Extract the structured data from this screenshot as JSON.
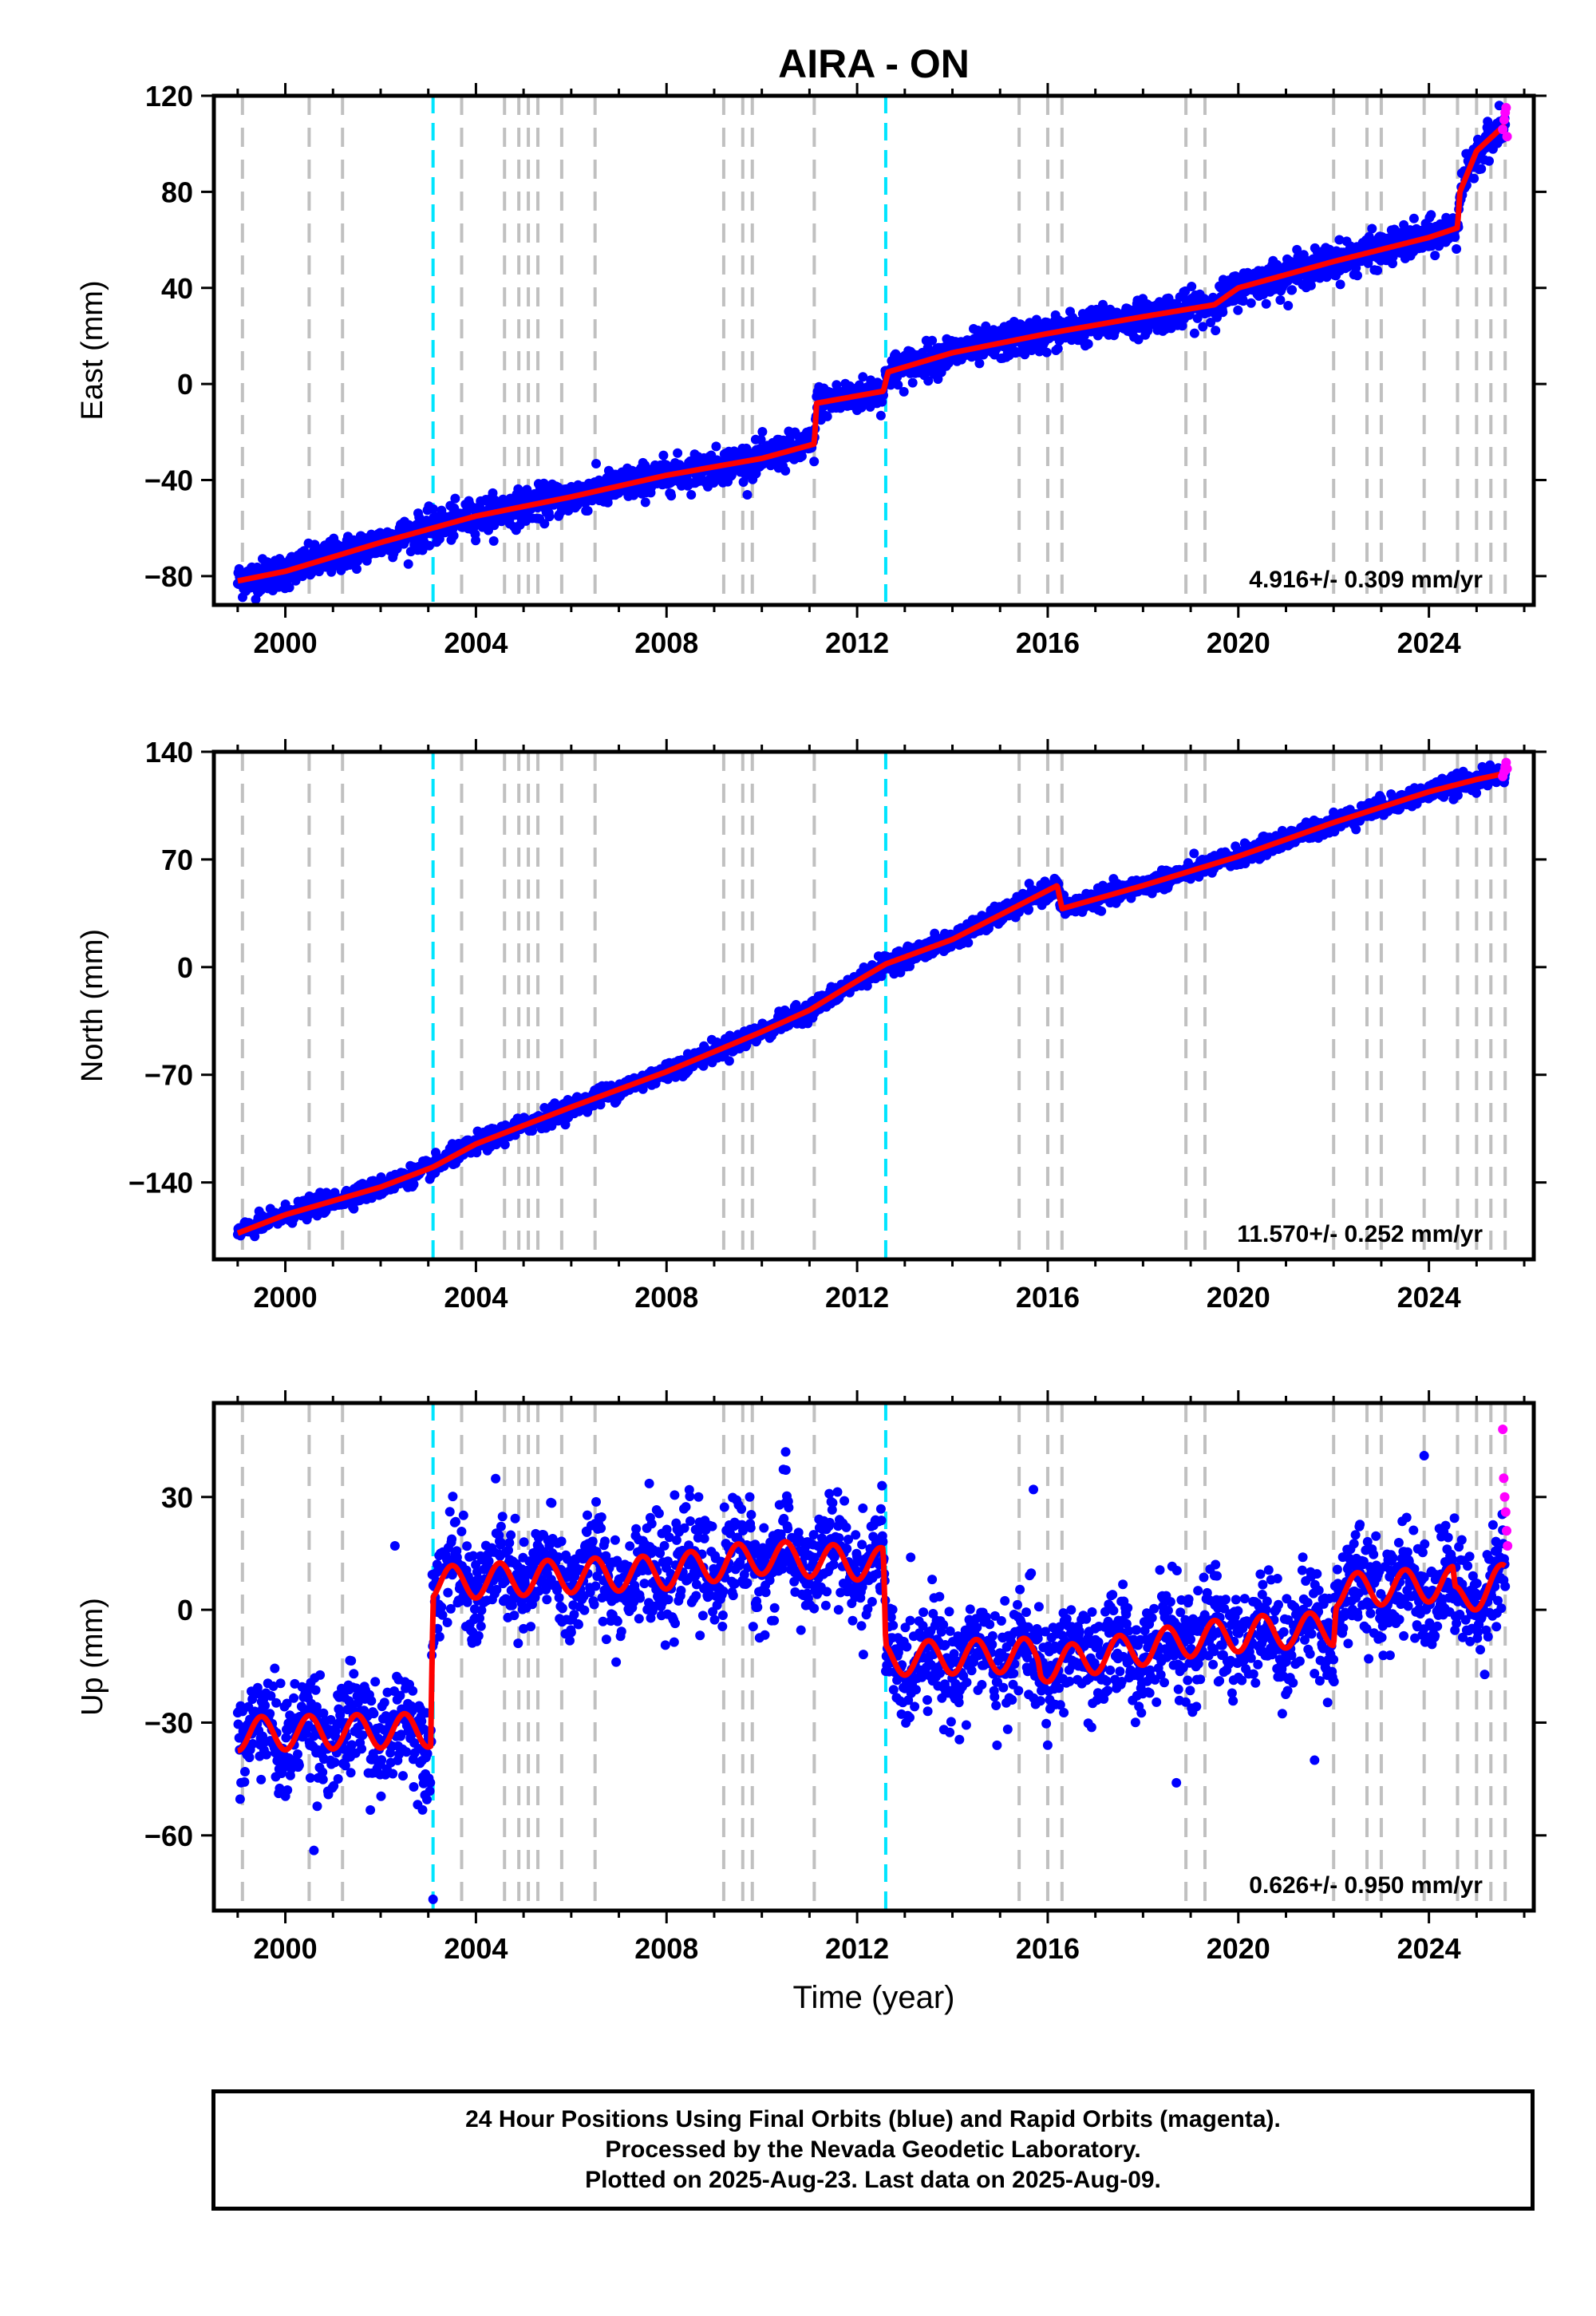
{
  "title": "AIRA - ON",
  "colors": {
    "final_orbits": "#0000ff",
    "rapid_orbits": "#ff00ff",
    "model": "#ff0000",
    "equipment_change": "#c0c0c0",
    "earthquake": "#00e5ff"
  },
  "x_axis": {
    "label": "Time (year)",
    "range": [
      1998.5,
      2026.2
    ],
    "ticks": [
      2000,
      2004,
      2008,
      2012,
      2016,
      2020,
      2024
    ],
    "tick_labels": [
      "2000",
      "2004",
      "2008",
      "2012",
      "2016",
      "2020",
      "2024"
    ]
  },
  "event_lines": {
    "gray_dashed": [
      1999.1,
      2000.5,
      2001.2,
      2003.7,
      2004.6,
      2004.9,
      2005.1,
      2005.3,
      2005.8,
      2006.5,
      2009.2,
      2009.6,
      2009.8,
      2011.1,
      2015.4,
      2016.0,
      2016.3,
      2018.9,
      2019.3,
      2022.0,
      2022.7,
      2023.0,
      2023.9,
      2024.6,
      2025.0,
      2025.3,
      2025.6
    ],
    "cyan_dashed": [
      2003.1,
      2012.6
    ]
  },
  "chart_data": [
    {
      "type": "scatter",
      "component": "east",
      "ylabel": "East (mm)",
      "ylim": [
        -92,
        120
      ],
      "yticks": [
        -80,
        -40,
        0,
        40,
        80,
        120
      ],
      "ytick_labels": [
        "−80",
        "−40",
        "0",
        "40",
        "80",
        "120"
      ],
      "rate_text": "4.916+/- 0.309 mm/yr",
      "rate_mm_per_yr": 4.916,
      "rate_sigma": 0.309,
      "model_series": {
        "x": [
          1999.0,
          2000.0,
          2002.0,
          2004.0,
          2006.0,
          2008.0,
          2010.0,
          2011.1,
          2011.15,
          2012.55,
          2012.65,
          2014.0,
          2016.0,
          2018.0,
          2019.5,
          2020.0,
          2022.0,
          2024.0,
          2024.6,
          2024.65,
          2025.0,
          2025.6
        ],
        "y": [
          -82,
          -78,
          -66,
          -55,
          -47,
          -38,
          -31,
          -25,
          -8,
          -3,
          5,
          13,
          21,
          28,
          33,
          40,
          51,
          61,
          65,
          80,
          97,
          108
        ]
      },
      "observations": {
        "x": [
          1999.0,
          2000.0,
          2002.0,
          2004.0,
          2006.0,
          2008.0,
          2010.0,
          2011.1,
          2011.15,
          2012.55,
          2012.65,
          2014.0,
          2016.0,
          2018.0,
          2019.5,
          2020.0,
          2022.0,
          2024.0,
          2024.6,
          2024.65,
          2025.0,
          2025.6
        ],
        "y": [
          -82,
          -78,
          -66,
          -55,
          -47,
          -38,
          -31,
          -25,
          -8,
          -3,
          5,
          13,
          21,
          28,
          33,
          40,
          51,
          61,
          65,
          80,
          97,
          108
        ],
        "spread": 3.5
      },
      "rapid_points": {
        "x": [
          2025.55,
          2025.58,
          2025.6,
          2025.62,
          2025.64
        ],
        "y": [
          106,
          110,
          113,
          115,
          103
        ]
      }
    },
    {
      "type": "scatter",
      "component": "north",
      "ylabel": "North (mm)",
      "ylim": [
        -190,
        140
      ],
      "yticks": [
        -140,
        -70,
        0,
        70,
        140
      ],
      "ytick_labels": [
        "−140",
        "−70",
        "0",
        "70",
        "140"
      ],
      "rate_text": "11.570+/- 0.252 mm/yr",
      "rate_mm_per_yr": 11.57,
      "rate_sigma": 0.252,
      "model_series": {
        "x": [
          1999.0,
          2000.0,
          2002.0,
          2003.1,
          2004.0,
          2006.0,
          2008.0,
          2010.0,
          2011.0,
          2012.0,
          2012.6,
          2014.0,
          2016.2,
          2016.3,
          2018.0,
          2020.0,
          2022.0,
          2024.0,
          2025.0,
          2025.6
        ],
        "y": [
          -173,
          -161,
          -143,
          -130,
          -115,
          -91,
          -68,
          -42,
          -28,
          -9,
          2,
          18,
          53,
          38,
          53,
          72,
          94,
          114,
          122,
          126
        ]
      },
      "observations": {
        "x": [
          1999.0,
          2000.0,
          2002.0,
          2003.1,
          2004.0,
          2006.0,
          2008.0,
          2010.0,
          2011.0,
          2012.0,
          2012.6,
          2014.0,
          2016.2,
          2016.3,
          2018.0,
          2020.0,
          2022.0,
          2024.0,
          2025.0,
          2025.6
        ],
        "y": [
          -173,
          -161,
          -143,
          -130,
          -115,
          -91,
          -68,
          -42,
          -28,
          -9,
          2,
          18,
          53,
          38,
          53,
          72,
          94,
          114,
          122,
          126
        ],
        "spread": 3.0
      },
      "rapid_points": {
        "x": [
          2025.55,
          2025.58,
          2025.6,
          2025.62,
          2025.64
        ],
        "y": [
          124,
          127,
          130,
          133,
          129
        ]
      }
    },
    {
      "type": "scatter",
      "component": "up",
      "ylabel": "Up (mm)",
      "ylim": [
        -80,
        55
      ],
      "yticks": [
        -60,
        -30,
        0,
        30
      ],
      "ytick_labels": [
        "−60",
        "−30",
        "0",
        "30"
      ],
      "rate_text": "0.626+/- 0.950 mm/yr",
      "rate_mm_per_yr": 0.626,
      "rate_sigma": 0.95,
      "model_series": {
        "x": [
          1999.0,
          2003.05,
          2003.1,
          2006.0,
          2008.0,
          2010.0,
          2012.55,
          2012.6,
          2015.8,
          2015.85,
          2019.0,
          2020.5,
          2022.0,
          2022.05,
          2024.5,
          2024.55,
          2025.6
        ],
        "y": [
          -33,
          -32,
          7,
          9,
          10,
          14,
          12,
          -13,
          -12,
          -15,
          -8,
          -6,
          -5,
          5,
          7,
          2,
          8
        ]
      },
      "model_seasonal_amplitude": 4.5,
      "observations": {
        "x": [
          1999.0,
          2003.05,
          2003.1,
          2006.0,
          2008.0,
          2010.0,
          2012.55,
          2012.6,
          2015.8,
          2015.85,
          2019.0,
          2020.5,
          2022.0,
          2022.05,
          2024.5,
          2024.55,
          2025.6
        ],
        "y": [
          -33,
          -32,
          7,
          9,
          10,
          14,
          12,
          -13,
          -12,
          -15,
          -8,
          -6,
          -5,
          5,
          7,
          2,
          8
        ],
        "spread": 7.0
      },
      "outliers": {
        "x": [
          2003.1,
          2000.6,
          2002.3,
          2010.5,
          2023.9,
          2015.7,
          2018.7,
          2021.6
        ],
        "y": [
          -77,
          -64,
          17,
          42,
          41,
          32,
          -46,
          -40
        ]
      },
      "rapid_points": {
        "x": [
          2025.55,
          2025.57,
          2025.59,
          2025.61,
          2025.63,
          2025.65
        ],
        "y": [
          48,
          35,
          30,
          26,
          21,
          17
        ]
      }
    }
  ],
  "footer": {
    "line1": "24 Hour Positions Using Final Orbits (blue) and Rapid Orbits (magenta).",
    "line2": "Processed by the Nevada Geodetic Laboratory.",
    "line3": "Plotted on 2025-Aug-23. Last data on 2025-Aug-09."
  }
}
